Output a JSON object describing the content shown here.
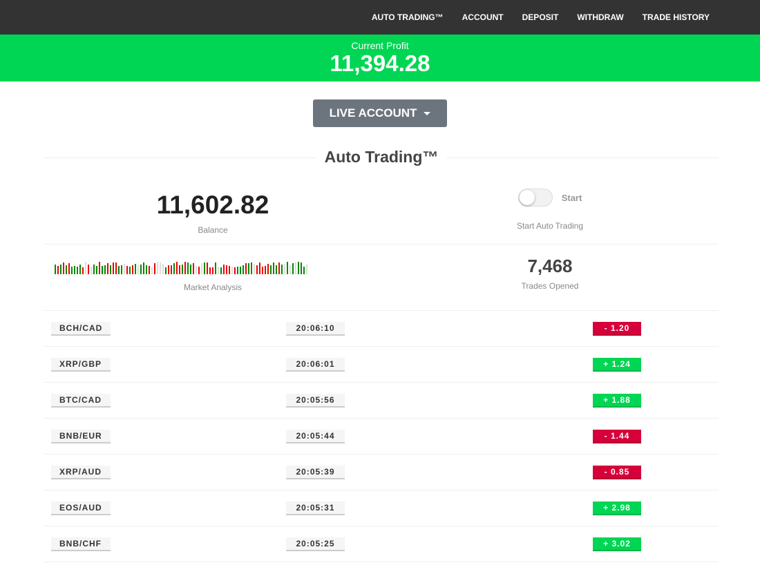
{
  "nav": {
    "items": [
      "AUTO TRADING™",
      "ACCOUNT",
      "DEPOSIT",
      "WITHDRAW",
      "TRADE HISTORY"
    ]
  },
  "profit": {
    "label": "Current Profit",
    "value": "11,394.28"
  },
  "account_button": "LIVE ACCOUNT",
  "title": "Auto Trading™",
  "balance": {
    "value": "11,602.82",
    "label": "Balance"
  },
  "toggle": {
    "label": "Start",
    "caption": "Start Auto Trading",
    "on": false
  },
  "market": {
    "label": "Market Analysis"
  },
  "trades": {
    "value": "7,468",
    "label": "Trades Opened"
  },
  "colors": {
    "green": "#00d653",
    "red": "#d6003a",
    "nav": "#333333"
  },
  "rows": [
    {
      "pair": "BCH/CAD",
      "time": "20:06:10",
      "change": "- 1.20",
      "dir": "neg"
    },
    {
      "pair": "XRP/GBP",
      "time": "20:06:01",
      "change": "+ 1.24",
      "dir": "pos"
    },
    {
      "pair": "BTC/CAD",
      "time": "20:05:56",
      "change": "+ 1.88",
      "dir": "pos"
    },
    {
      "pair": "BNB/EUR",
      "time": "20:05:44",
      "change": "- 1.44",
      "dir": "neg"
    },
    {
      "pair": "XRP/AUD",
      "time": "20:05:39",
      "change": "- 0.85",
      "dir": "neg"
    },
    {
      "pair": "EOS/AUD",
      "time": "20:05:31",
      "change": "+ 2.98",
      "dir": "pos"
    },
    {
      "pair": "BNB/CHF",
      "time": "20:05:25",
      "change": "+ 3.02",
      "dir": "pos"
    }
  ]
}
